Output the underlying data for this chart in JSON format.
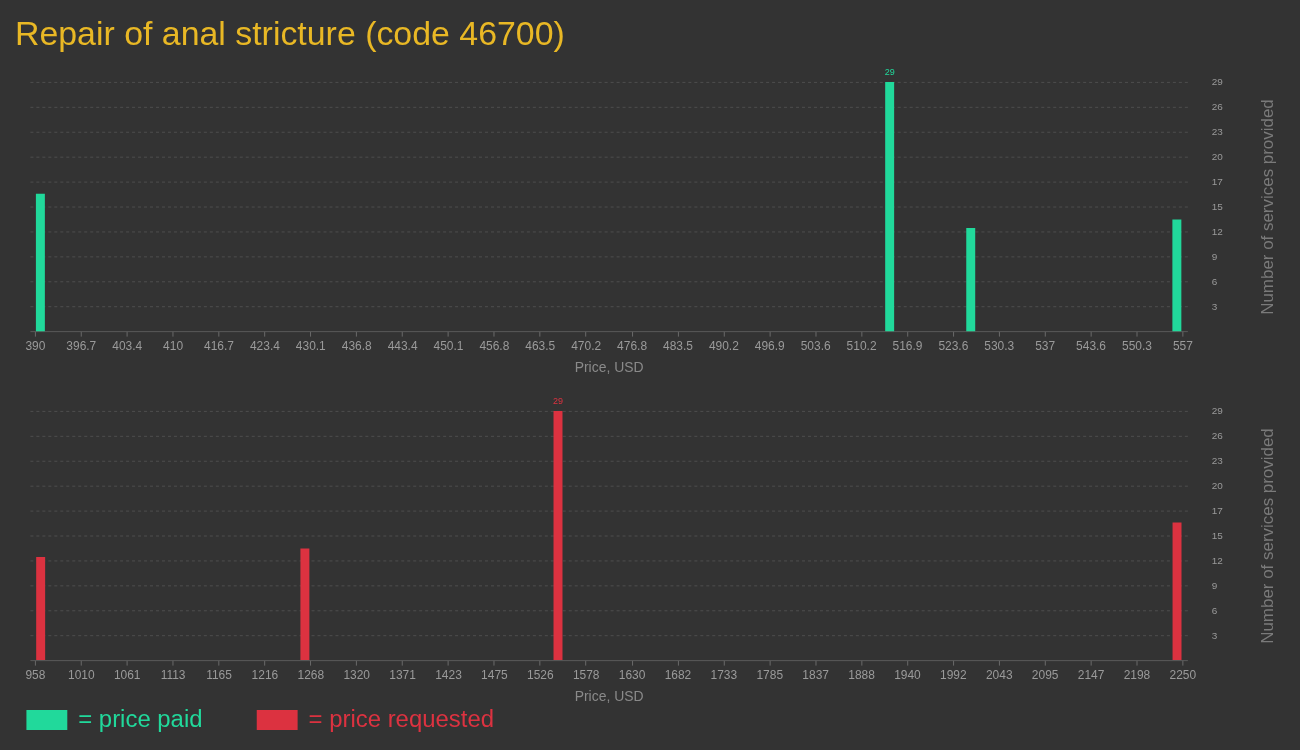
{
  "chart_data": [
    {
      "type": "bar",
      "title": "Repair of anal stricture (code 46700)",
      "xlabel": "Price, USD",
      "ylabel": "Number of services provided",
      "x": [
        390.8,
        514.4,
        526.2,
        556.2
      ],
      "series": [
        {
          "name": "= price paid",
          "color": "#21d99b",
          "values": [
            16,
            29,
            12,
            13
          ],
          "value_labels": [
            null,
            "29",
            null,
            null
          ]
        }
      ],
      "xlim": [
        390,
        557
      ],
      "xticks": [
        390,
        {
          "value": 396.68,
          "label": "396.7"
        },
        {
          "value": 403.36,
          "label": "403.4"
        },
        {
          "value": 410.04,
          "label": "410"
        },
        {
          "value": 416.72,
          "label": "416.7"
        },
        423.4,
        {
          "value": 430.08,
          "label": "430.1"
        },
        {
          "value": 436.76,
          "label": "436.8"
        },
        {
          "value": 443.44,
          "label": "443.4"
        },
        {
          "value": 450.12,
          "label": "450.1"
        },
        456.8,
        {
          "value": 463.48,
          "label": "463.5"
        },
        {
          "value": 470.16,
          "label": "470.2"
        },
        {
          "value": 476.84,
          "label": "476.8"
        },
        {
          "value": 483.52,
          "label": "483.5"
        },
        490.2,
        {
          "value": 496.88,
          "label": "496.9"
        },
        {
          "value": 503.56,
          "label": "503.6"
        },
        {
          "value": 510.24,
          "label": "510.2"
        },
        {
          "value": 516.92,
          "label": "516.9"
        },
        523.6,
        {
          "value": 530.28,
          "label": "530.3"
        },
        {
          "value": 536.96,
          "label": "537"
        },
        {
          "value": 543.64,
          "label": "543.6"
        },
        {
          "value": 550.32,
          "label": "550.3"
        },
        557
      ],
      "ylim": [
        0,
        29
      ],
      "yticks": [
        {
          "value": 2.9,
          "label": "3"
        },
        {
          "value": 5.8,
          "label": "6"
        },
        {
          "value": 8.7,
          "label": "9"
        },
        {
          "value": 11.6,
          "label": "12"
        },
        {
          "value": 14.5,
          "label": "15"
        },
        {
          "value": 17.4,
          "label": "17"
        },
        {
          "value": 20.3,
          "label": "20"
        },
        {
          "value": 23.2,
          "label": "23"
        },
        {
          "value": 26.1,
          "label": "26"
        },
        29
      ],
      "grid": "y",
      "legend": "bottom left"
    },
    {
      "type": "bar",
      "xlabel": "Price, USD",
      "ylabel": "Number of services provided",
      "x": [
        964.5,
        1262,
        1547,
        2244
      ],
      "series": [
        {
          "name": "= price requested",
          "color": "#dc3240",
          "values": [
            12,
            13,
            29,
            16
          ],
          "value_labels": [
            null,
            null,
            "29",
            null
          ]
        }
      ],
      "xlim": [
        958,
        2250
      ],
      "xticks": [
        958,
        {
          "value": 1009.68,
          "label": "1010"
        },
        {
          "value": 1061.36,
          "label": "1061"
        },
        {
          "value": 1113.04,
          "label": "1113"
        },
        {
          "value": 1164.72,
          "label": "1165"
        },
        {
          "value": 1216.4,
          "label": "1216"
        },
        {
          "value": 1268.08,
          "label": "1268"
        },
        {
          "value": 1319.76,
          "label": "1320"
        },
        {
          "value": 1371.44,
          "label": "1371"
        },
        {
          "value": 1423.12,
          "label": "1423"
        },
        {
          "value": 1474.8,
          "label": "1475"
        },
        {
          "value": 1526.48,
          "label": "1526"
        },
        {
          "value": 1578.16,
          "label": "1578"
        },
        {
          "value": 1629.84,
          "label": "1630"
        },
        {
          "value": 1681.52,
          "label": "1682"
        },
        {
          "value": 1733.2,
          "label": "1733"
        },
        {
          "value": 1784.88,
          "label": "1785"
        },
        {
          "value": 1836.56,
          "label": "1837"
        },
        {
          "value": 1888.24,
          "label": "1888"
        },
        {
          "value": 1939.92,
          "label": "1940"
        },
        {
          "value": 1991.6,
          "label": "1992"
        },
        {
          "value": 2043.28,
          "label": "2043"
        },
        {
          "value": 2094.96,
          "label": "2095"
        },
        {
          "value": 2146.64,
          "label": "2147"
        },
        {
          "value": 2198.32,
          "label": "2198"
        },
        2250
      ],
      "ylim": [
        0,
        29
      ],
      "yticks": [
        {
          "value": 2.9,
          "label": "3"
        },
        {
          "value": 5.8,
          "label": "6"
        },
        {
          "value": 8.7,
          "label": "9"
        },
        {
          "value": 11.6,
          "label": "12"
        },
        {
          "value": 14.5,
          "label": "15"
        },
        {
          "value": 17.4,
          "label": "17"
        },
        {
          "value": 20.3,
          "label": "20"
        },
        {
          "value": 23.2,
          "label": "23"
        },
        {
          "value": 26.1,
          "label": "26"
        },
        29
      ],
      "grid": "y",
      "legend": "bottom left"
    }
  ]
}
